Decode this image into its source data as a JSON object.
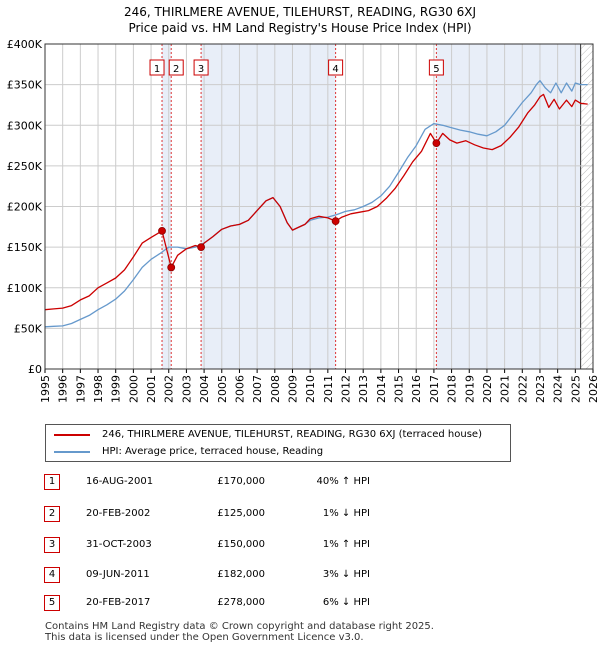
{
  "header": {
    "title_line1": "246, THIRLMERE AVENUE, TILEHURST, READING, RG30 6XJ",
    "title_line2": "Price paid vs. HM Land Registry's House Price Index (HPI)"
  },
  "chart_data": {
    "type": "line",
    "x_range": [
      1995,
      2026
    ],
    "ylim": [
      0,
      400000
    ],
    "y_ticks": [
      {
        "value": 0,
        "label": "£0"
      },
      {
        "value": 50000,
        "label": "£50K"
      },
      {
        "value": 100000,
        "label": "£100K"
      },
      {
        "value": 150000,
        "label": "£150K"
      },
      {
        "value": 200000,
        "label": "£200K"
      },
      {
        "value": 250000,
        "label": "£250K"
      },
      {
        "value": 300000,
        "label": "£300K"
      },
      {
        "value": 350000,
        "label": "£350K"
      },
      {
        "value": 400000,
        "label": "£400K"
      }
    ],
    "x_ticks": [
      "1995",
      "1996",
      "1997",
      "1998",
      "1999",
      "2000",
      "2001",
      "2002",
      "2003",
      "2004",
      "2005",
      "2006",
      "2007",
      "2008",
      "2009",
      "2010",
      "2011",
      "2012",
      "2013",
      "2014",
      "2015",
      "2016",
      "2017",
      "2018",
      "2019",
      "2020",
      "2021",
      "2022",
      "2023",
      "2024",
      "2025",
      "2026"
    ],
    "grid": true,
    "shaded_ranges": [
      [
        2001.62,
        2002.14
      ],
      [
        2003.83,
        2011.44
      ],
      [
        2017.14,
        2025.3
      ]
    ],
    "forecast_start": 2025.3,
    "series": [
      {
        "name": "246, THIRLMERE AVENUE, TILEHURST, READING, RG30 6XJ (terraced house)",
        "color": "#cc0000",
        "x": [
          1995.0,
          1995.5,
          1996.0,
          1996.5,
          1997.0,
          1997.5,
          1998.0,
          1998.5,
          1999.0,
          1999.5,
          2000.0,
          2000.5,
          2001.0,
          2001.62,
          2002.14,
          2002.5,
          2003.0,
          2003.5,
          2003.83,
          2004.0,
          2004.5,
          2005.0,
          2005.5,
          2006.0,
          2006.5,
          2007.0,
          2007.5,
          2007.9,
          2008.3,
          2008.7,
          2009.0,
          2009.3,
          2009.7,
          2010.0,
          2010.5,
          2011.0,
          2011.44,
          2011.8,
          2012.3,
          2012.8,
          2013.3,
          2013.8,
          2014.3,
          2014.8,
          2015.3,
          2015.8,
          2016.3,
          2016.8,
          2017.14,
          2017.5,
          2017.9,
          2018.3,
          2018.8,
          2019.3,
          2019.8,
          2020.3,
          2020.8,
          2021.3,
          2021.8,
          2022.3,
          2022.7,
          2023.0,
          2023.2,
          2023.5,
          2023.8,
          2024.1,
          2024.5,
          2024.8,
          2025.0,
          2025.3,
          2025.7
        ],
        "values": [
          73000,
          74000,
          75000,
          78000,
          85000,
          90000,
          100000,
          106000,
          112000,
          122000,
          138000,
          155000,
          162000,
          170000,
          125000,
          140000,
          148000,
          152000,
          150000,
          155000,
          163000,
          172000,
          176000,
          178000,
          183000,
          195000,
          207000,
          211000,
          200000,
          180000,
          171000,
          174000,
          178000,
          185000,
          188000,
          186000,
          182000,
          187000,
          191000,
          193000,
          195000,
          200000,
          210000,
          222000,
          238000,
          255000,
          268000,
          290000,
          278000,
          290000,
          282000,
          278000,
          281000,
          276000,
          272000,
          270000,
          275000,
          285000,
          298000,
          315000,
          325000,
          335000,
          338000,
          322000,
          332000,
          320000,
          331000,
          323000,
          331000,
          327000,
          326000
        ]
      },
      {
        "name": "HPI: Average price, terraced house, Reading",
        "color": "#6699cc",
        "x": [
          1995.0,
          1995.5,
          1996.0,
          1996.5,
          1997.0,
          1997.5,
          1998.0,
          1998.5,
          1999.0,
          1999.5,
          2000.0,
          2000.5,
          2001.0,
          2001.5,
          2002.0,
          2002.5,
          2003.0,
          2003.5,
          2004.0,
          2004.5,
          2005.0,
          2005.5,
          2006.0,
          2006.5,
          2007.0,
          2007.5,
          2007.9,
          2008.3,
          2008.7,
          2009.0,
          2009.3,
          2009.7,
          2010.0,
          2010.5,
          2011.0,
          2011.5,
          2012.0,
          2012.5,
          2013.0,
          2013.5,
          2014.0,
          2014.5,
          2015.0,
          2015.5,
          2016.0,
          2016.5,
          2017.0,
          2017.5,
          2018.0,
          2018.5,
          2019.0,
          2019.5,
          2020.0,
          2020.5,
          2021.0,
          2021.5,
          2022.0,
          2022.5,
          2022.8,
          2023.0,
          2023.3,
          2023.6,
          2023.9,
          2024.2,
          2024.5,
          2024.8,
          2025.0,
          2025.3,
          2025.7
        ],
        "values": [
          52000,
          52500,
          53000,
          56000,
          61000,
          66000,
          73000,
          79000,
          86000,
          96000,
          110000,
          125000,
          135000,
          142000,
          150000,
          150000,
          148000,
          150000,
          155000,
          163000,
          172000,
          176000,
          178000,
          183000,
          195000,
          207000,
          211000,
          200000,
          180000,
          171000,
          174000,
          178000,
          183000,
          186000,
          187000,
          190000,
          194000,
          196000,
          200000,
          205000,
          213000,
          225000,
          242000,
          260000,
          275000,
          295000,
          302000,
          300000,
          297000,
          294000,
          292000,
          289000,
          287000,
          292000,
          300000,
          314000,
          328000,
          340000,
          350000,
          355000,
          346000,
          340000,
          352000,
          340000,
          352000,
          342000,
          352000,
          350000,
          350000
        ]
      }
    ],
    "sales": [
      {
        "label": "1",
        "x": 2001.62,
        "value": 170000
      },
      {
        "label": "2",
        "x": 2002.14,
        "value": 125000
      },
      {
        "label": "3",
        "x": 2003.83,
        "value": 150000
      },
      {
        "label": "4",
        "x": 2011.44,
        "value": 182000
      },
      {
        "label": "5",
        "x": 2017.14,
        "value": 278000
      }
    ]
  },
  "legend": {
    "red_label": "246, THIRLMERE AVENUE, TILEHURST, READING, RG30 6XJ (terraced house)",
    "blue_label": "HPI: Average price, terraced house, Reading",
    "red_color": "#cc0000",
    "blue_color": "#6699cc"
  },
  "transactions": [
    {
      "num": "1",
      "date": "16-AUG-2001",
      "price": "£170,000",
      "hpi": "40% ↑ HPI"
    },
    {
      "num": "2",
      "date": "20-FEB-2002",
      "price": "£125,000",
      "hpi": "1% ↓ HPI"
    },
    {
      "num": "3",
      "date": "31-OCT-2003",
      "price": "£150,000",
      "hpi": "1% ↑ HPI"
    },
    {
      "num": "4",
      "date": "09-JUN-2011",
      "price": "£182,000",
      "hpi": "3% ↓ HPI"
    },
    {
      "num": "5",
      "date": "20-FEB-2017",
      "price": "£278,000",
      "hpi": "6% ↓ HPI"
    }
  ],
  "footer": {
    "line1": "Contains HM Land Registry data © Crown copyright and database right 2025.",
    "line2": "This data is licensed under the Open Government Licence v3.0."
  }
}
